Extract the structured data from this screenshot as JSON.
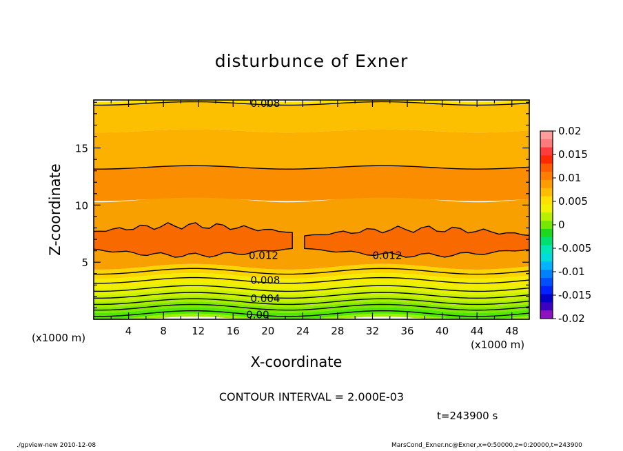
{
  "chart_data": {
    "type": "contour",
    "title": "disturbunce of Exner",
    "xlabel": "X-coordinate",
    "ylabel": "Z-coordinate",
    "x_unit_left": "(x1000 m)",
    "x_unit_right": "(x1000 m)",
    "xlim": [
      0,
      50
    ],
    "ylim": [
      0,
      19.2
    ],
    "xticks": [
      4,
      8,
      12,
      16,
      20,
      24,
      28,
      32,
      36,
      40,
      44,
      48
    ],
    "yticks": [
      5,
      10,
      15
    ],
    "contour_interval_text": "CONTOUR INTERVAL = 2.000E-03",
    "time_text": "t=243900 s",
    "contour_labels": [
      {
        "text": "0.008",
        "x": 18,
        "z": 18.9
      },
      {
        "text": "0.012",
        "x": 17.8,
        "z": 5.6
      },
      {
        "text": "0.012",
        "x": 32,
        "z": 5.6
      },
      {
        "text": "0.008",
        "x": 18,
        "z": 3.4
      },
      {
        "text": "0.004",
        "x": 18,
        "z": 1.8
      },
      {
        "text": "0.00",
        "x": 17.5,
        "z": 0.4
      }
    ],
    "bands": [
      {
        "z": [
          0,
          0.25
        ],
        "value": -0.001,
        "color": "#9cf000"
      },
      {
        "z": [
          0.25,
          0.8
        ],
        "value": 0.0,
        "color": "#50e800"
      },
      {
        "z": [
          0.8,
          1.3
        ],
        "value": 0.001,
        "color": "#7ee800"
      },
      {
        "z": [
          1.3,
          1.8
        ],
        "value": 0.002,
        "color": "#a8ec00"
      },
      {
        "z": [
          1.8,
          2.4
        ],
        "value": 0.003,
        "color": "#c8f000"
      },
      {
        "z": [
          2.4,
          3.0
        ],
        "value": 0.004,
        "color": "#e4f200"
      },
      {
        "z": [
          3.0,
          3.8
        ],
        "value": 0.005,
        "color": "#f6ec00"
      },
      {
        "z": [
          3.8,
          4.6
        ],
        "value": 0.006,
        "color": "#fcd400"
      },
      {
        "z": [
          4.6,
          10.5
        ],
        "value": 0.008,
        "color": "#f8a000"
      },
      {
        "z": [
          10.5,
          13.3
        ],
        "value": 0.0095,
        "color": "#fa8e00"
      },
      {
        "z": [
          13.3,
          16.5
        ],
        "value": 0.009,
        "color": "#fcb000"
      },
      {
        "z": [
          16.5,
          18.9
        ],
        "value": 0.0085,
        "color": "#fcc000"
      },
      {
        "z": [
          18.9,
          19.2
        ],
        "value": 0.008,
        "color": "#fde100"
      }
    ],
    "colorbar": {
      "ticks": [
        "0.02",
        "0.015",
        "0.01",
        "0.005",
        "0",
        "-0.005",
        "-0.01",
        "-0.015",
        "-0.02"
      ],
      "colors_top_to_bottom": [
        "#ff9c9c",
        "#ff7a7a",
        "#ff3c3c",
        "#ff2a00",
        "#ff5c00",
        "#ff7e00",
        "#ff9d00",
        "#ffbc00",
        "#ffe000",
        "#f2f200",
        "#b8f000",
        "#78e800",
        "#1ed81e",
        "#00e070",
        "#00e6b4",
        "#00dcdc",
        "#00b4ff",
        "#0082ff",
        "#0050ff",
        "#0022ff",
        "#0000c8",
        "#3c00c0",
        "#8c14c0"
      ]
    }
  },
  "footer_left": "./gpview-new   2010-12-08",
  "footer_right": "MarsCond_Exner.nc@Exner,x=0:50000,z=0:20000,t=243900"
}
